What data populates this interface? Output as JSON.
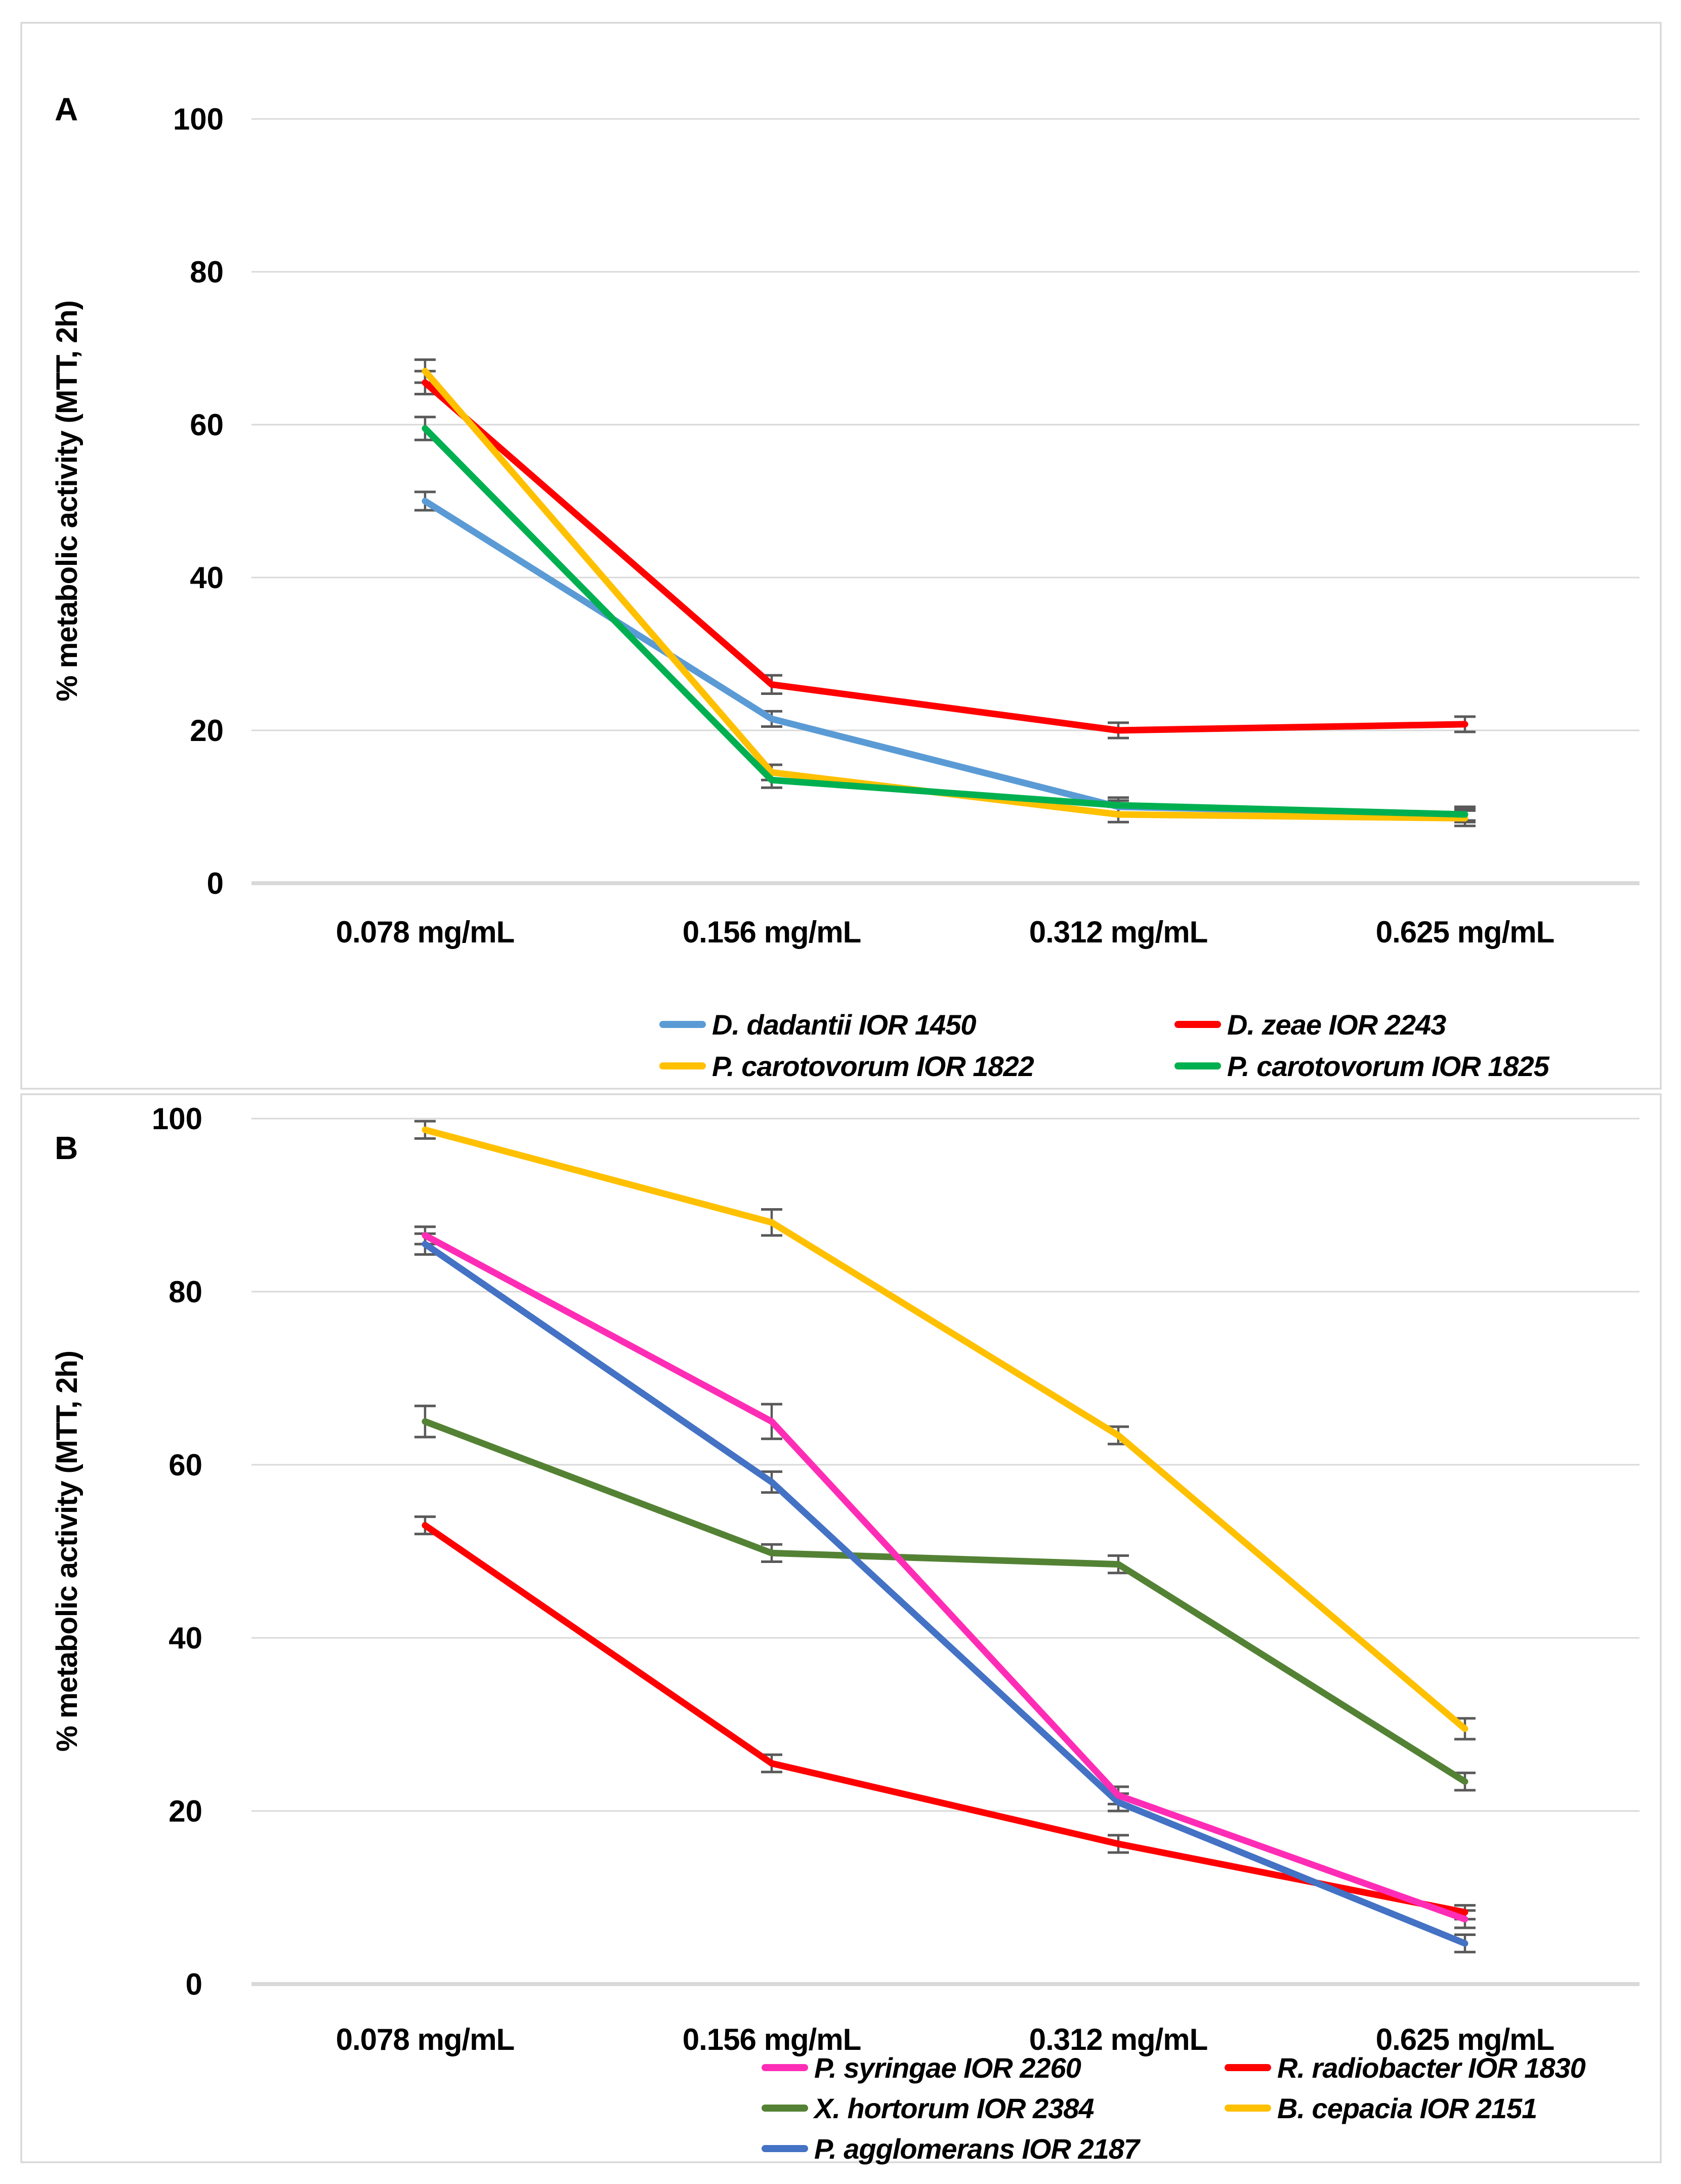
{
  "figure": {
    "background": "#FFFFFF",
    "frame_color": "#D9D9D9",
    "gridline_color": "#D9D9D9",
    "error_bar_color": "#595959",
    "panel_labels": [
      "A",
      "B"
    ]
  },
  "chart_data": [
    {
      "type": "line",
      "panel_label": "A",
      "title": "",
      "xlabel": "",
      "ylabel": "% metabolic activity (MTT, 2h)",
      "categories": [
        "0.078 mg/mL",
        "0.156 mg/mL",
        "0.312 mg/mL",
        "0.625 mg/mL"
      ],
      "ylim": [
        0,
        100
      ],
      "yticks": [
        0,
        20,
        40,
        60,
        80,
        100
      ],
      "grid": "horizontal",
      "legend_position": "bottom",
      "legend_columns": 2,
      "series": [
        {
          "name": "D. dadantii IOR 1450",
          "color": "#5B9BD5",
          "values": [
            50.0,
            21.5,
            10.0,
            9.0
          ],
          "errors": [
            1.2,
            1.0,
            0.8,
            0.8
          ],
          "z": 0
        },
        {
          "name": "D.  zeae IOR 2243",
          "color": "#FF0000",
          "values": [
            65.5,
            26.0,
            20.0,
            20.8
          ],
          "errors": [
            1.5,
            1.2,
            1.0,
            1.0
          ],
          "z": 1
        },
        {
          "name": "P. carotovorum IOR 1822",
          "color": "#FFC000",
          "values": [
            67.0,
            14.5,
            9.0,
            8.5
          ],
          "errors": [
            1.5,
            1.0,
            1.0,
            1.0
          ],
          "z": 2
        },
        {
          "name": "P. carotovorum IOR 1825",
          "color": "#00B050",
          "values": [
            59.5,
            13.5,
            10.2,
            9.0
          ],
          "errors": [
            1.5,
            1.0,
            1.0,
            1.0
          ],
          "z": 3
        }
      ]
    },
    {
      "type": "line",
      "panel_label": "B",
      "title": "",
      "xlabel": "",
      "ylabel": "% metabolic activity (MTT, 2h)",
      "categories": [
        "0.078 mg/mL",
        "0.156 mg/mL",
        "0.312 mg/mL",
        "0.625 mg/mL"
      ],
      "ylim": [
        0,
        100
      ],
      "yticks": [
        0,
        20,
        40,
        60,
        80,
        100
      ],
      "grid": "horizontal",
      "legend_position": "bottom",
      "legend_columns": 2,
      "series": [
        {
          "name": "P. syringae IOR 2260",
          "color": "#FF2DB6",
          "values": [
            86.5,
            65.0,
            21.8,
            7.5
          ],
          "errors": [
            1.0,
            2.0,
            1.0,
            1.0
          ],
          "z": 4
        },
        {
          "name": "R. radiobacter IOR 1830",
          "color": "#FF0000",
          "values": [
            53.0,
            25.5,
            16.2,
            8.3
          ],
          "errors": [
            1.0,
            1.0,
            1.0,
            0.8
          ],
          "z": 0
        },
        {
          "name": "X. hortorum IOR 2384",
          "color": "#548235",
          "values": [
            65.0,
            49.8,
            48.5,
            23.4
          ],
          "errors": [
            1.8,
            1.0,
            1.0,
            1.0
          ],
          "z": 1
        },
        {
          "name": "B. cepacia IOR 2151",
          "color": "#FFC000",
          "values": [
            98.7,
            88.0,
            63.4,
            29.5
          ],
          "errors": [
            1.0,
            1.5,
            1.0,
            1.2
          ],
          "z": 2
        },
        {
          "name": "P. agglomerans IOR 2187",
          "color": "#4472C4",
          "values": [
            85.5,
            58.0,
            21.0,
            4.7
          ],
          "errors": [
            1.2,
            1.2,
            1.0,
            1.0
          ],
          "z": 3
        }
      ]
    }
  ]
}
